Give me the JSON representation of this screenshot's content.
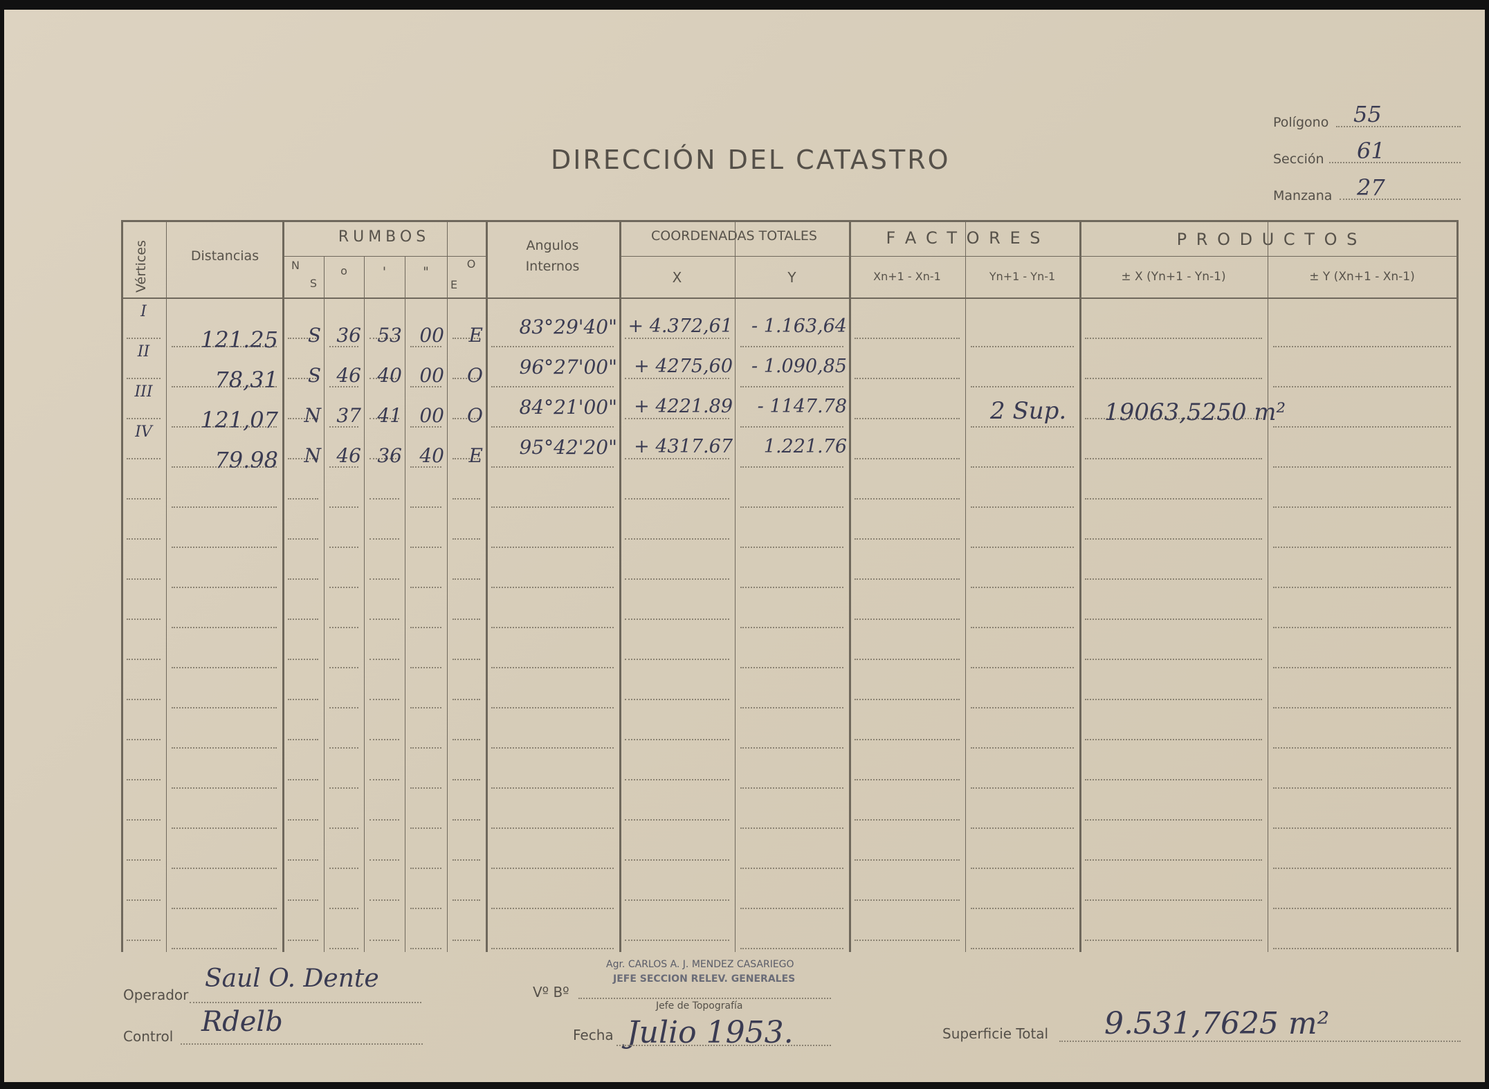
{
  "title": "DIRECCIÓN DEL CATASTRO",
  "meta": [
    {
      "label": "Polígono",
      "value": "55"
    },
    {
      "label": "Sección",
      "value": "61"
    },
    {
      "label": "Manzana",
      "value": "27"
    }
  ],
  "headers": {
    "vertices": "Vértices",
    "distancias": "Distancias",
    "rumbos": "RUMBOS",
    "ns": "N",
    "ns2": "S",
    "deg": "o",
    "min": "'",
    "sec": "\"",
    "oe": "O",
    "oe2": "E",
    "angulos": "Angulos",
    "angulos2": "Internos",
    "coordenadas": "COORDENADAS TOTALES",
    "x": "X",
    "y": "Y",
    "factores": "F A C T O R E S",
    "f1": "Xn+1 - Xn-1",
    "f2": "Yn+1 - Yn-1",
    "productos": "P R O D U C T O S",
    "p1": "± X (Yn+1 - Yn-1)",
    "p2": "± Y (Xn+1 - Xn-1)"
  },
  "rows": [
    {
      "vertex": "I",
      "distance": "121.25",
      "ns": "S",
      "deg": "36",
      "min": "53",
      "sec": "00",
      "oe": "E",
      "angle": "83°29'40\"",
      "x": "+ 4.372,61",
      "y": "- 1.163,64"
    },
    {
      "vertex": "II",
      "distance": "78,31",
      "ns": "S",
      "deg": "46",
      "min": "40",
      "sec": "00",
      "oe": "O",
      "angle": "96°27'00\"",
      "x": "+ 4275,60",
      "y": "- 1.090,85"
    },
    {
      "vertex": "III",
      "distance": "121,07",
      "ns": "N",
      "deg": "37",
      "min": "41",
      "sec": "00",
      "oe": "O",
      "angle": "84°21'00\"",
      "x": "+ 4221.89",
      "y": "- 1147.78"
    },
    {
      "vertex": "IV",
      "distance": "79.98",
      "ns": "N",
      "deg": "46",
      "min": "36",
      "sec": "40",
      "oe": "E",
      "angle": "95°42'20\"",
      "x": "+ 4317.67",
      "y": "1.221.76"
    }
  ],
  "factor_note": "2 Sup.",
  "product_note": "19063,5250 m²",
  "footer": {
    "operador_label": "Operador",
    "operador_value": "Saul O. Dente",
    "control_label": "Control",
    "control_value": "Rdelb",
    "vobo_label": "Vº Bº",
    "stamp_line1": "Agr. CARLOS A. J. MENDEZ CASARIEGO",
    "stamp_line2": "JEFE SECCION RELEV. GENERALES",
    "jefe_label": "Jefe de Topografía",
    "fecha_label": "Fecha",
    "fecha_value": "Julio 1953.",
    "superficie_label": "Superficie Total",
    "superficie_value": "9.531,7625 m²"
  },
  "colors": {
    "paper": "#d8cebb",
    "ink": "#3a3b52",
    "print": "#555049"
  }
}
